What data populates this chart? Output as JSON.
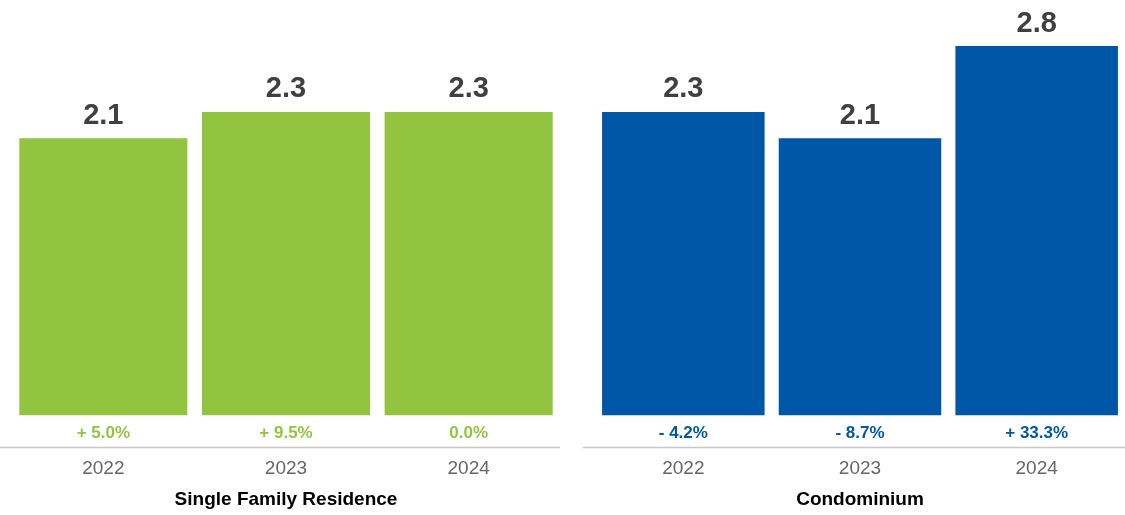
{
  "chart_data": [
    {
      "type": "bar",
      "xlabel": "Single Family Residence",
      "categories": [
        "2022",
        "2023",
        "2024"
      ],
      "values": [
        2.1,
        2.3,
        2.3
      ],
      "color": "#92c43f",
      "data_labels": true,
      "grid": false,
      "legend": false,
      "tick_labels": "x",
      "annotations": [
        "+ 5.0%",
        "+ 9.5%",
        "0.0%"
      ]
    },
    {
      "type": "bar",
      "xlabel": "Condominium",
      "categories": [
        "2022",
        "2023",
        "2024"
      ],
      "values": [
        2.3,
        2.1,
        2.8
      ],
      "color": "#0057a8",
      "data_labels": true,
      "grid": false,
      "legend": false,
      "tick_labels": "x",
      "annotations": [
        "- 4.2%",
        "- 8.7%",
        "+ 33.3%"
      ]
    }
  ]
}
